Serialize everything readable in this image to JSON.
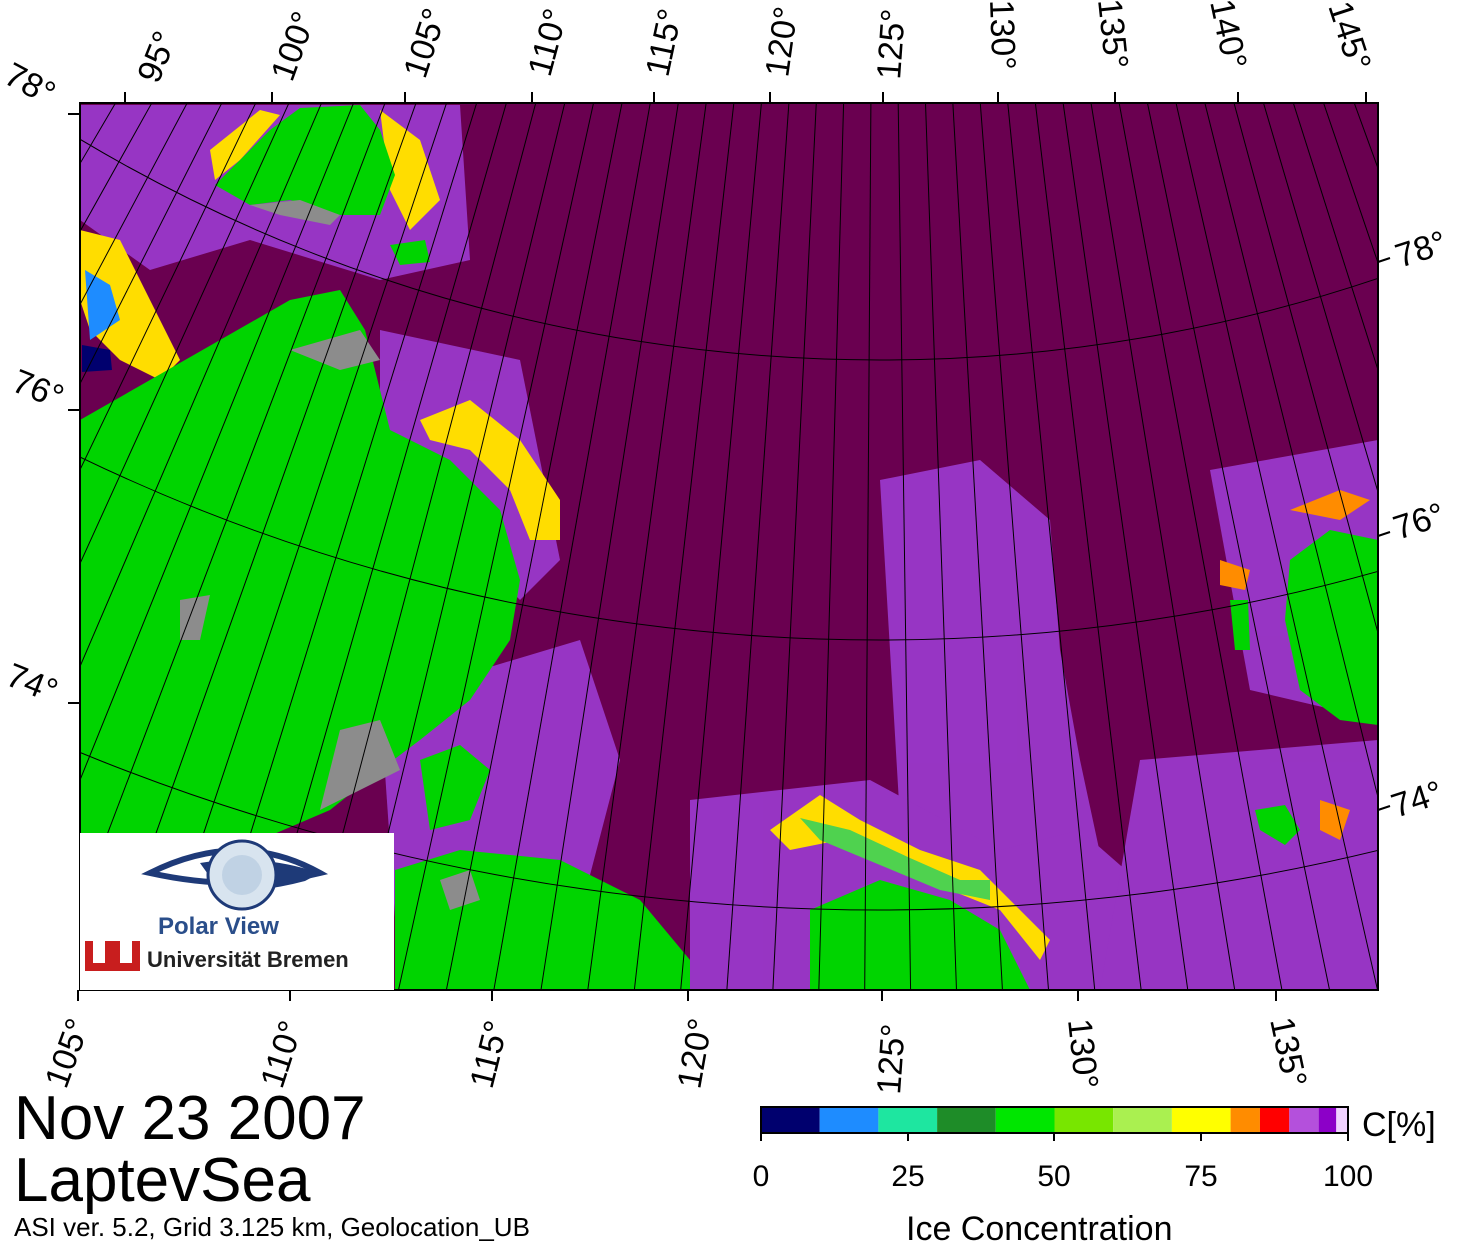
{
  "map": {
    "top_lon_labels": [
      "95°",
      "100°",
      "105°",
      "110°",
      "115°",
      "120°",
      "125°",
      "130°",
      "135°",
      "140°",
      "145°"
    ],
    "bottom_lon_labels": [
      "105°",
      "110°",
      "115°",
      "120°",
      "125°",
      "130°",
      "135°"
    ],
    "left_lat_labels": [
      "78°",
      "76°",
      "74°"
    ],
    "right_lat_labels": [
      "78°",
      "76°",
      "74°"
    ],
    "colors": {
      "open_water": "#6a0050",
      "land": "#00d400",
      "grid": "#000000",
      "coast_mask": "#8c8c8c"
    }
  },
  "title": {
    "date": "Nov 23 2007",
    "region": "LaptevSea"
  },
  "footer": {
    "info": "ASI ver. 5.2,  Grid 3.125 km, Geolocation_UB"
  },
  "logo": {
    "name": "Polar View",
    "institution": "Universität Bremen"
  },
  "colorbar": {
    "title": "Ice Concentration",
    "unit": "C[%]",
    "ticks": [
      "0",
      "25",
      "50",
      "75",
      "100"
    ],
    "colors": [
      "#00006e",
      "#1e8cff",
      "#1ee6a0",
      "#1e8c28",
      "#00e600",
      "#78e600",
      "#aaf050",
      "#ffff00",
      "#ff8c00",
      "#ff0000",
      "#b450dc",
      "#8c00c8",
      "#f0d2ff"
    ]
  }
}
